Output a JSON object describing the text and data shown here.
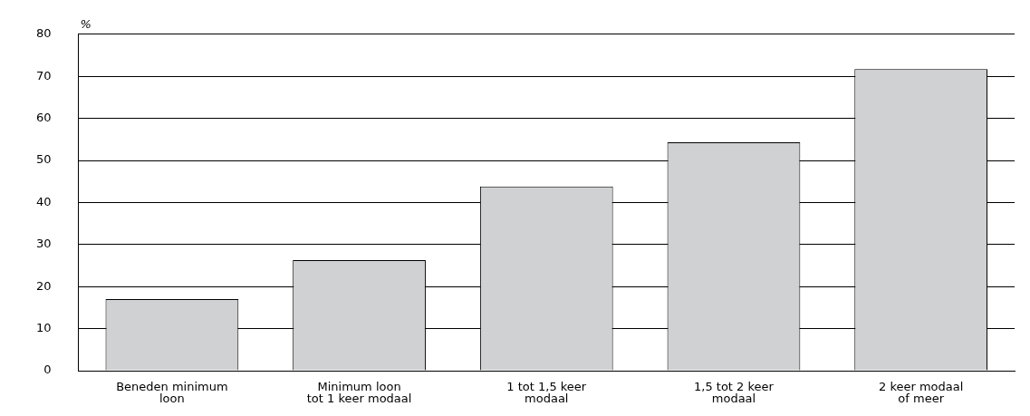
{
  "chart_data": {
    "type": "bar",
    "ylabel": "%",
    "categories": [
      "Beneden minimum\nloon",
      "Minimum loon\ntot 1 keer modaal",
      "1 tot 1,5 keer\nmodaal",
      "1,5 tot 2 keer\nmodaal",
      "2 keer modaal\nof meer"
    ],
    "values": [
      17,
      26.3,
      43.8,
      54.3,
      71.7
    ],
    "color": "#d0d1d3",
    "ylim": [
      0,
      80
    ],
    "yticks": [
      0,
      10,
      20,
      30,
      40,
      50,
      60,
      70,
      80
    ],
    "grid": "y"
  }
}
